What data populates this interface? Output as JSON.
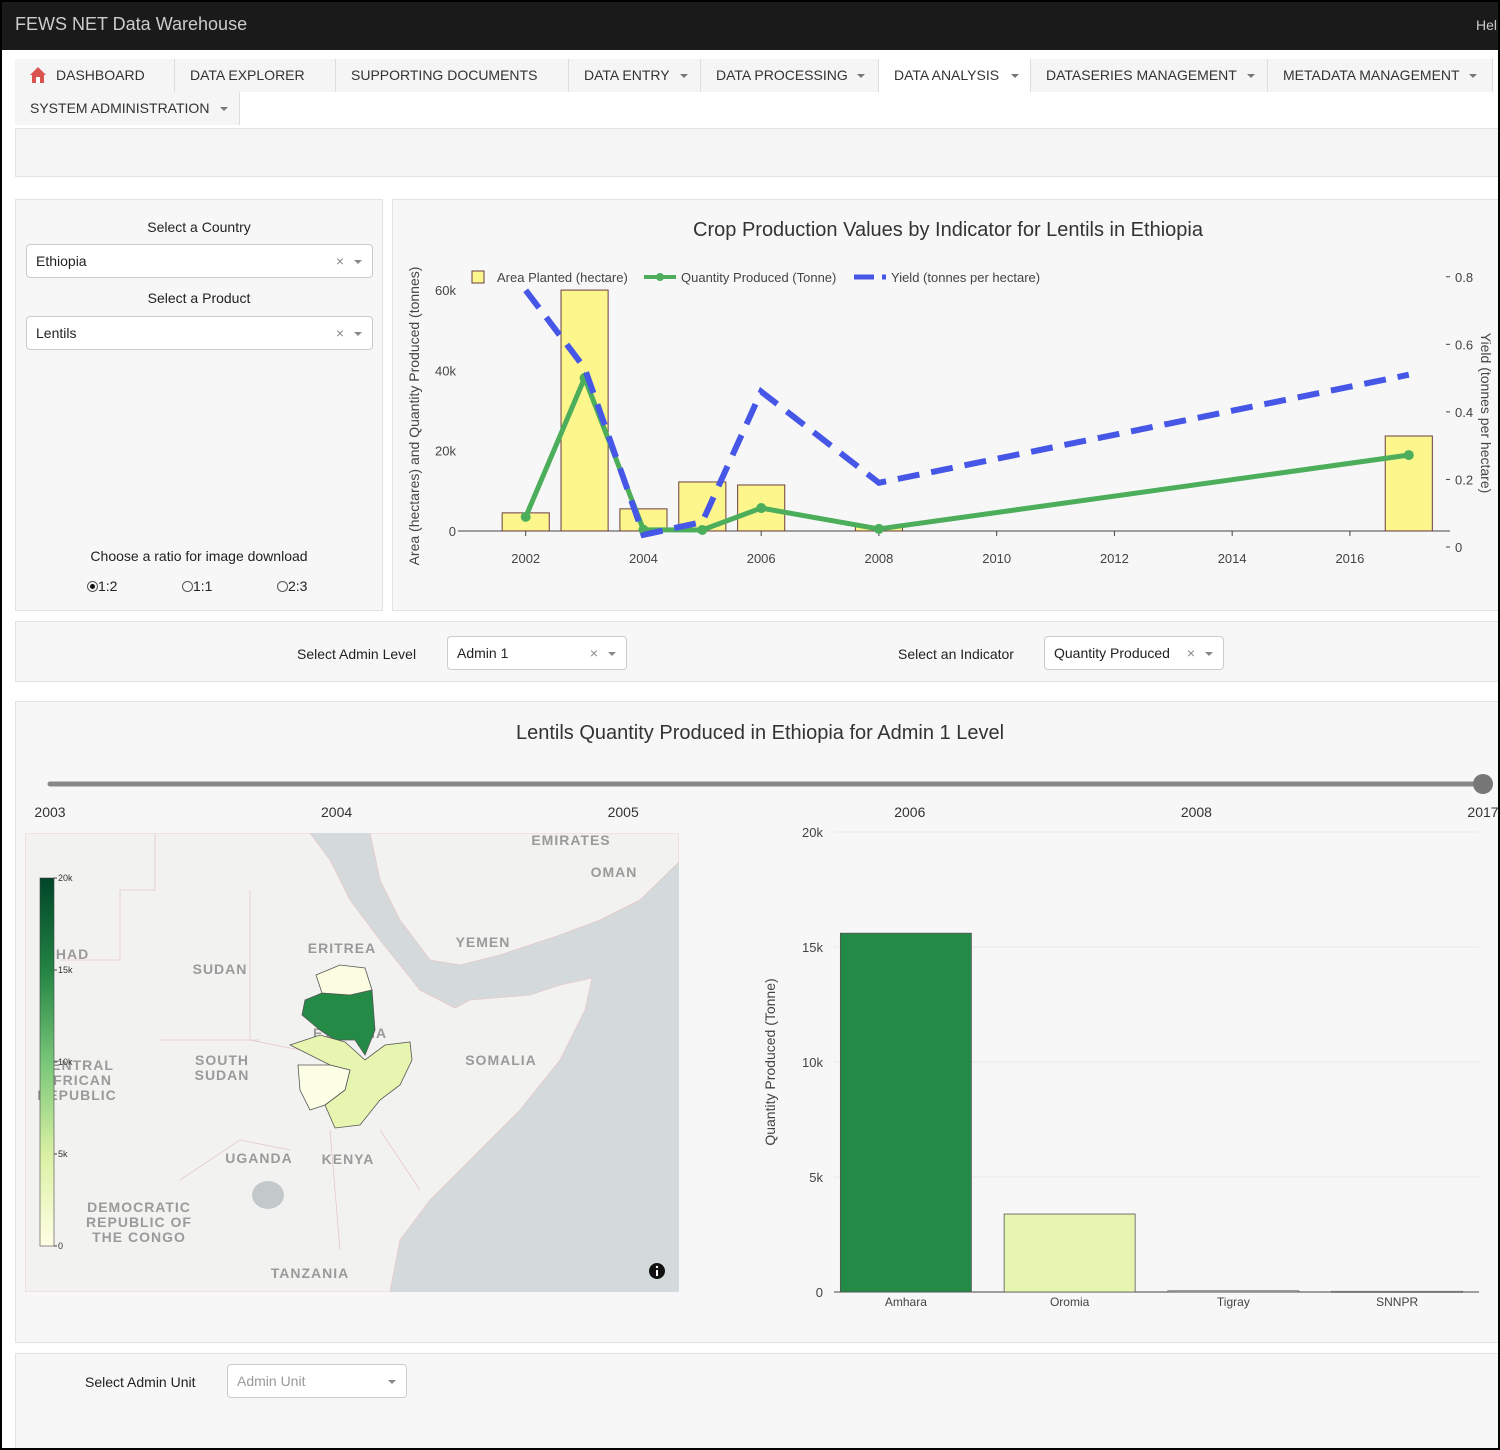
{
  "header": {
    "title": "FEWS NET Data Warehouse",
    "help": "Help"
  },
  "nav": {
    "tabs": [
      "DASHBOARD",
      "DATA EXPLORER",
      "SUPPORTING DOCUMENTS",
      "DATA ENTRY",
      "DATA PROCESSING",
      "DATA ANALYSIS",
      "DATASERIES MANAGEMENT",
      "METADATA MANAGEMENT",
      "SYSTEM ADMINISTRATION"
    ]
  },
  "controls": {
    "country_label": "Select a Country",
    "country": "Ethiopia",
    "product_label": "Select a Product",
    "product": "Lentils",
    "ratio_label": "Choose a ratio for image download",
    "ratios": [
      "1:2",
      "1:1",
      "2:3"
    ],
    "ratio_selected": 0
  },
  "filters": {
    "admin_level_label": "Select Admin Level",
    "admin_level": "Admin 1",
    "indicator_label": "Select an Indicator",
    "indicator": "Quantity Produced"
  },
  "admin_unit": {
    "label": "Select Admin Unit",
    "placeholder": "Admin Unit"
  },
  "slider": {
    "steps": [
      "2003",
      "2004",
      "2005",
      "2006",
      "2008",
      "2017"
    ],
    "active": 5
  },
  "map": {
    "colorbar": {
      "lim": [
        0,
        20000
      ],
      "ticks": [
        0,
        {
          "value": 5000,
          "label": "5k"
        },
        {
          "value": 10000,
          "label": "10k"
        },
        {
          "value": 15000,
          "label": "15k"
        },
        {
          "value": 20000,
          "label": "20k"
        }
      ]
    },
    "labels": [
      {
        "lines": [
          "EMIRATES"
        ]
      },
      {
        "lines": [
          "OMAN"
        ]
      },
      {
        "lines": [
          "YEMEN"
        ]
      },
      {
        "lines": [
          "ERITREA"
        ]
      },
      {
        "lines": [
          "SUDAN"
        ]
      },
      {
        "lines": [
          "ETHIOPIA"
        ]
      },
      {
        "lines": [
          "SOUTH",
          "SUDAN"
        ]
      },
      {
        "lines": [
          "SOMALIA"
        ]
      },
      {
        "lines": [
          "CENTRAL",
          "AFRICAN",
          "REPUBLIC"
        ]
      },
      {
        "lines": [
          "CHAD"
        ]
      },
      {
        "lines": [
          "UGANDA"
        ]
      },
      {
        "lines": [
          "KENYA"
        ]
      },
      {
        "lines": [
          "DEMOCRATIC",
          "REPUBLIC OF",
          "THE CONGO"
        ]
      },
      {
        "lines": [
          "TANZANIA"
        ]
      }
    ]
  },
  "chart_data": [
    {
      "type": "combo",
      "title": "Crop Production Values by Indicator for Lentils in Ethiopia",
      "y_label": "Area (hectares) and Quantity Produced (tonnes)",
      "y2_label": "Yield (tonnes per hectare)",
      "x": [
        2002,
        2003,
        2004,
        2005,
        2006,
        2008,
        2017
      ],
      "xlim": [
        2000.85,
        2017.7
      ],
      "xticks": [
        2002,
        2004,
        2006,
        2008,
        2010,
        2012,
        2014,
        2016
      ],
      "ylim": [
        -4000,
        65000
      ],
      "yticks": [
        0,
        {
          "value": 20000,
          "label": "20k"
        },
        {
          "value": 40000,
          "label": "40k"
        },
        {
          "value": 60000,
          "label": "60k"
        }
      ],
      "y2lim": [
        0,
        0.82
      ],
      "y2ticks": [
        0,
        0.2,
        0.4,
        0.6,
        0.8
      ],
      "legend": "top-left",
      "series": [
        {
          "name": "Area Planted (hectare)",
          "type": "bar",
          "color": "#fdf68d",
          "values": [
            4500,
            60000,
            5500,
            12200,
            11450,
            1000,
            23650
          ]
        },
        {
          "name": "Quantity Produced (Tonne)",
          "type": "line",
          "color": "#4cae5b",
          "values": [
            3500,
            38100,
            300,
            250,
            5700,
            500,
            18900
          ]
        },
        {
          "name": "Yield (tonnes per hectare)",
          "type": "line",
          "dash": true,
          "axis": "y2",
          "color": "#4657e8",
          "values": [
            0.76,
            0.53,
            0.036,
            0.074,
            0.46,
            0.19,
            0.51
          ]
        }
      ]
    },
    {
      "type": "bar",
      "title": "Lentils Quantity Produced in Ethiopia for Admin 1 Level",
      "y_label": "Quantity Produced (Tonne)",
      "categories": [
        "Amhara",
        "Oromia",
        "Tigray",
        "SNNPR"
      ],
      "values": [
        15600,
        3390,
        50,
        30
      ],
      "colors": [
        "#238b45",
        "#e6f5b0",
        "#fcfde0",
        "#fdfee6"
      ],
      "ylim": [
        0,
        20000
      ],
      "yticks": [
        0,
        {
          "value": 5000,
          "label": "5k"
        },
        {
          "value": 10000,
          "label": "10k"
        },
        {
          "value": 15000,
          "label": "15k"
        },
        {
          "value": 20000,
          "label": "20k"
        }
      ],
      "grid": true
    }
  ]
}
